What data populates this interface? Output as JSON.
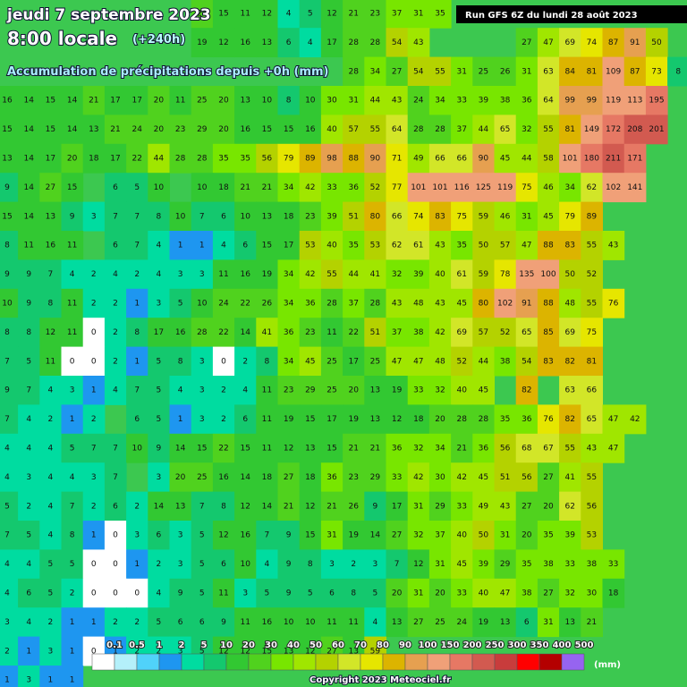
{
  "header": {
    "date": "jeudi 7 septembre 2023",
    "time": "8:00 locale",
    "lead": "(+240h)",
    "subtitle": "Accumulation de précipitations depuis +0h (mm)"
  },
  "run": "Run GFS 6Z du lundi 28 août 2023",
  "grid": [
    [
      null,
      null,
      null,
      null,
      null,
      null,
      null,
      null,
      null,
      24,
      15,
      11,
      12,
      4,
      5,
      12,
      21,
      23,
      37,
      31,
      35
    ],
    [
      null,
      null,
      null,
      null,
      null,
      null,
      null,
      null,
      null,
      19,
      12,
      16,
      13,
      6,
      4,
      17,
      28,
      28,
      54,
      43,
      null,
      null,
      null,
      null,
      27,
      47,
      69,
      74,
      87,
      91,
      50
    ],
    [
      null,
      null,
      null,
      null,
      null,
      null,
      null,
      null,
      null,
      null,
      null,
      null,
      null,
      null,
      null,
      null,
      28,
      34,
      27,
      54,
      55,
      31,
      25,
      26,
      31,
      63,
      84,
      81,
      109,
      87,
      73,
      8
    ],
    [
      16,
      14,
      15,
      14,
      21,
      17,
      17,
      20,
      11,
      25,
      20,
      13,
      10,
      8,
      10,
      30,
      31,
      44,
      43,
      24,
      34,
      33,
      39,
      38,
      36,
      64,
      99,
      99,
      119,
      113,
      195
    ],
    [
      15,
      14,
      15,
      14,
      13,
      21,
      24,
      20,
      23,
      29,
      20,
      16,
      15,
      15,
      16,
      40,
      57,
      55,
      64,
      28,
      28,
      37,
      44,
      65,
      32,
      55,
      81,
      149,
      172,
      208,
      201
    ],
    [
      13,
      14,
      17,
      20,
      18,
      17,
      22,
      44,
      28,
      28,
      35,
      35,
      56,
      79,
      89,
      98,
      88,
      90,
      71,
      49,
      66,
      66,
      90,
      45,
      44,
      58,
      101,
      180,
      211,
      171
    ],
    [
      9,
      14,
      27,
      15,
      null,
      6,
      5,
      10,
      null,
      10,
      18,
      21,
      21,
      34,
      42,
      33,
      36,
      52,
      77,
      101,
      101,
      116,
      125,
      119,
      75,
      46,
      34,
      62,
      102,
      141
    ],
    [
      15,
      14,
      13,
      9,
      3,
      7,
      7,
      8,
      10,
      7,
      6,
      10,
      13,
      18,
      23,
      39,
      51,
      80,
      66,
      74,
      83,
      75,
      59,
      46,
      31,
      45,
      79,
      89
    ],
    [
      8,
      11,
      16,
      11,
      null,
      6,
      7,
      4,
      1,
      1,
      4,
      6,
      15,
      17,
      53,
      40,
      35,
      53,
      62,
      61,
      43,
      35,
      50,
      57,
      47,
      88,
      83,
      55,
      43
    ],
    [
      9,
      9,
      7,
      4,
      2,
      4,
      2,
      4,
      3,
      3,
      11,
      16,
      19,
      34,
      42,
      55,
      44,
      41,
      32,
      39,
      40,
      61,
      59,
      78,
      135,
      100,
      50,
      52
    ],
    [
      10,
      9,
      8,
      11,
      2,
      2,
      1,
      3,
      5,
      10,
      24,
      22,
      26,
      34,
      36,
      28,
      37,
      28,
      43,
      48,
      43,
      45,
      80,
      102,
      91,
      88,
      48,
      55,
      76
    ],
    [
      8,
      8,
      12,
      11,
      0,
      2,
      8,
      17,
      16,
      28,
      22,
      14,
      41,
      36,
      23,
      11,
      22,
      51,
      37,
      38,
      42,
      69,
      57,
      52,
      65,
      85,
      69,
      75
    ],
    [
      7,
      5,
      11,
      0,
      0,
      2,
      1,
      5,
      8,
      3,
      0,
      2,
      8,
      34,
      45,
      25,
      17,
      25,
      47,
      47,
      48,
      52,
      44,
      38,
      54,
      83,
      82,
      81
    ],
    [
      9,
      7,
      4,
      3,
      1,
      4,
      7,
      5,
      4,
      3,
      2,
      4,
      11,
      23,
      29,
      25,
      20,
      13,
      19,
      33,
      32,
      40,
      45,
      null,
      82,
      null,
      63,
      66
    ],
    [
      7,
      4,
      2,
      1,
      2,
      null,
      6,
      5,
      1,
      3,
      2,
      6,
      11,
      19,
      15,
      17,
      19,
      13,
      12,
      18,
      20,
      28,
      28,
      35,
      36,
      76,
      82,
      65,
      47,
      42
    ],
    [
      4,
      4,
      4,
      5,
      7,
      7,
      10,
      9,
      14,
      15,
      22,
      15,
      11,
      12,
      13,
      15,
      21,
      21,
      36,
      32,
      34,
      21,
      36,
      56,
      68,
      67,
      55,
      43,
      47
    ],
    [
      4,
      3,
      4,
      4,
      3,
      7,
      null,
      3,
      20,
      25,
      16,
      14,
      18,
      27,
      18,
      36,
      23,
      29,
      33,
      42,
      30,
      42,
      45,
      51,
      56,
      27,
      41,
      55
    ],
    [
      5,
      2,
      4,
      7,
      2,
      6,
      2,
      14,
      13,
      7,
      8,
      12,
      14,
      21,
      12,
      21,
      26,
      9,
      17,
      31,
      29,
      33,
      49,
      43,
      27,
      20,
      62,
      56
    ],
    [
      7,
      5,
      4,
      8,
      1,
      0,
      3,
      6,
      3,
      5,
      12,
      16,
      7,
      9,
      15,
      31,
      19,
      14,
      27,
      32,
      37,
      40,
      50,
      31,
      20,
      35,
      39,
      53
    ],
    [
      4,
      4,
      5,
      5,
      0,
      0,
      1,
      2,
      3,
      5,
      6,
      10,
      4,
      9,
      8,
      3,
      2,
      3,
      7,
      12,
      31,
      45,
      39,
      29,
      35,
      38,
      33,
      38,
      33
    ],
    [
      4,
      6,
      5,
      2,
      0,
      0,
      0,
      4,
      9,
      5,
      11,
      3,
      5,
      9,
      5,
      6,
      8,
      5,
      20,
      31,
      20,
      33,
      40,
      47,
      38,
      27,
      32,
      30,
      18
    ],
    [
      3,
      4,
      2,
      1,
      1,
      2,
      2,
      5,
      6,
      6,
      9,
      11,
      16,
      10,
      10,
      11,
      11,
      4,
      13,
      27,
      25,
      24,
      19,
      13,
      6,
      31,
      13,
      21
    ],
    [
      2,
      1,
      3,
      1,
      0,
      1,
      2,
      2,
      3,
      5,
      12,
      12,
      15,
      13,
      12,
      27,
      13,
      59
    ],
    [
      1,
      3,
      1,
      1
    ]
  ],
  "legend": {
    "levels": [
      0.1,
      0.5,
      1,
      2,
      5,
      10,
      20,
      30,
      40,
      50,
      60,
      70,
      80,
      90,
      100,
      150,
      200,
      250,
      300,
      350,
      400,
      500
    ],
    "colors": [
      "#ffffff",
      "#b4f0fa",
      "#50d2fa",
      "#1e96f0",
      "#00dca0",
      "#14c86e",
      "#32c832",
      "#50d21e",
      "#78e600",
      "#a0e600",
      "#b4d200",
      "#d2e628",
      "#e6e600",
      "#dcb400",
      "#e6a050",
      "#f0a078",
      "#e67864",
      "#d25a50",
      "#c83c3c",
      "#ff0000",
      "#b40000",
      "#9664f0"
    ],
    "unit": "(mm)"
  },
  "copyright": "Copyright 2023 Meteociel.fr"
}
